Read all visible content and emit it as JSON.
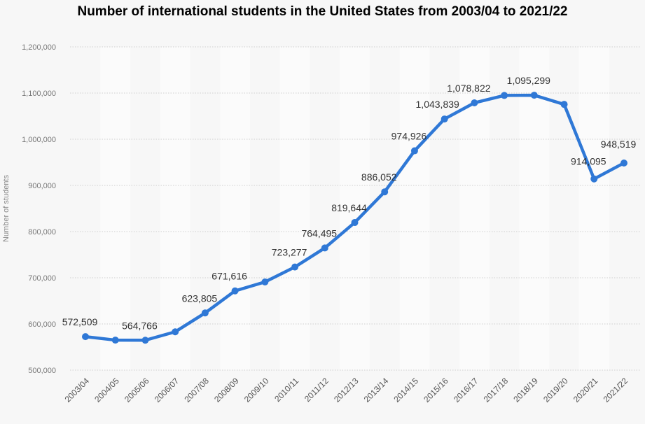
{
  "chart_data": {
    "type": "line",
    "title": "Number of international students in the United States from 2003/04 to 2021/22",
    "xlabel": "",
    "ylabel": "Number of students",
    "ylim": [
      500000,
      1200000
    ],
    "yticks": [
      "500,000",
      "600,000",
      "700,000",
      "800,000",
      "900,000",
      "1,000,000",
      "1,100,000",
      "1,200,000"
    ],
    "grid": true,
    "color": "#2f78d6",
    "categories": [
      "2003/04",
      "2004/05",
      "2005/06",
      "2006/07",
      "2007/08",
      "2008/09",
      "2009/10",
      "2010/11",
      "2011/12",
      "2012/13",
      "2013/14",
      "2014/15",
      "2015/16",
      "2016/17",
      "2017/18",
      "2018/19",
      "2019/20",
      "2020/21",
      "2021/22"
    ],
    "values": [
      572509,
      565039,
      564766,
      582984,
      623805,
      671616,
      690923,
      723277,
      764495,
      819644,
      886052,
      974926,
      1043839,
      1078822,
      1094792,
      1095299,
      1075496,
      914095,
      948519
    ],
    "data_labels": [
      "572,509",
      null,
      "564,766",
      null,
      "623,805",
      "671,616",
      null,
      "723,277",
      "764,495",
      "819,644",
      "886,052",
      "974,926",
      "1,043,839",
      "1,078,822",
      null,
      "1,095,299",
      null,
      "914,095",
      "948,519"
    ]
  }
}
